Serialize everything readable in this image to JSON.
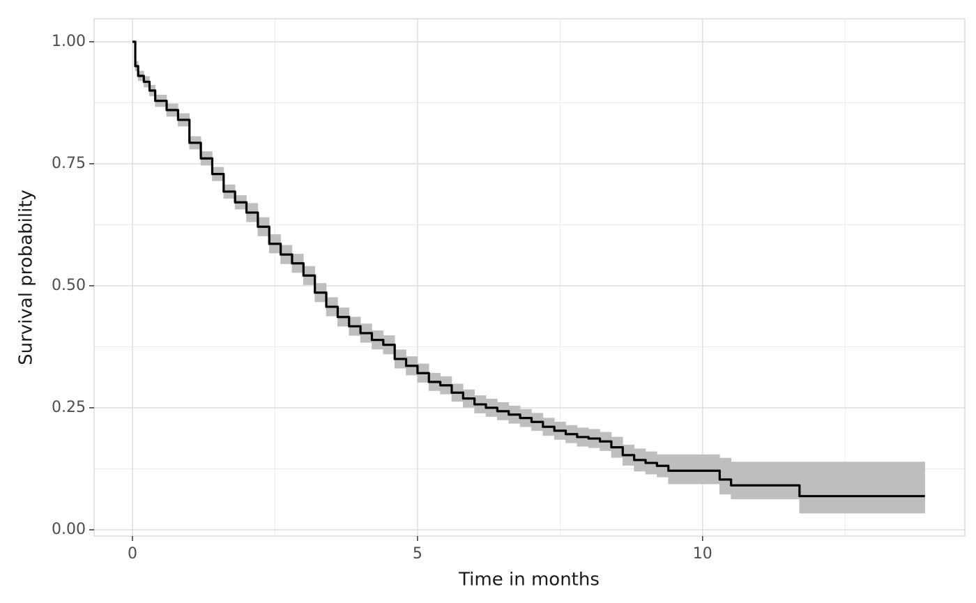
{
  "chart_data": {
    "type": "line",
    "step": true,
    "xlabel": "Time in months",
    "ylabel": "Survival probability",
    "x": [
      0,
      0.05,
      0.1,
      0.2,
      0.3,
      0.4,
      0.6,
      0.8,
      1.0,
      1.2,
      1.4,
      1.6,
      1.8,
      2.0,
      2.2,
      2.4,
      2.6,
      2.8,
      3.0,
      3.2,
      3.4,
      3.6,
      3.8,
      4.0,
      4.2,
      4.4,
      4.6,
      4.8,
      5.0,
      5.2,
      5.4,
      5.6,
      5.8,
      6.0,
      6.2,
      6.4,
      6.6,
      6.8,
      7.0,
      7.2,
      7.4,
      7.6,
      7.8,
      8.0,
      8.2,
      8.4,
      8.6,
      8.8,
      9.0,
      9.2,
      9.4,
      10.3,
      10.5,
      11.7,
      13.9
    ],
    "series": [
      {
        "color": "#000000",
        "ribbon_color": "#bebebe",
        "values": [
          1,
          0.95,
          0.93,
          0.918,
          0.9,
          0.879,
          0.86,
          0.84,
          0.793,
          0.761,
          0.729,
          0.693,
          0.671,
          0.65,
          0.621,
          0.586,
          0.564,
          0.546,
          0.521,
          0.486,
          0.457,
          0.436,
          0.417,
          0.403,
          0.389,
          0.379,
          0.35,
          0.336,
          0.321,
          0.303,
          0.296,
          0.281,
          0.269,
          0.257,
          0.25,
          0.243,
          0.236,
          0.229,
          0.221,
          0.211,
          0.203,
          0.196,
          0.19,
          0.187,
          0.181,
          0.169,
          0.153,
          0.143,
          0.137,
          0.131,
          0.121,
          0.103,
          0.091,
          0.069,
          0.069
        ],
        "lower": [
          1,
          0.94,
          0.92,
          0.907,
          0.889,
          0.867,
          0.847,
          0.827,
          0.78,
          0.747,
          0.715,
          0.679,
          0.657,
          0.631,
          0.602,
          0.567,
          0.545,
          0.527,
          0.502,
          0.467,
          0.438,
          0.417,
          0.398,
          0.384,
          0.37,
          0.36,
          0.331,
          0.317,
          0.302,
          0.285,
          0.278,
          0.263,
          0.251,
          0.239,
          0.232,
          0.225,
          0.218,
          0.211,
          0.203,
          0.193,
          0.185,
          0.178,
          0.171,
          0.168,
          0.162,
          0.148,
          0.132,
          0.12,
          0.114,
          0.108,
          0.094,
          0.073,
          0.063,
          0.034,
          0.034
        ],
        "upper": [
          1,
          0.96,
          0.94,
          0.929,
          0.911,
          0.891,
          0.873,
          0.853,
          0.806,
          0.775,
          0.743,
          0.707,
          0.685,
          0.669,
          0.64,
          0.605,
          0.583,
          0.565,
          0.54,
          0.505,
          0.476,
          0.455,
          0.436,
          0.422,
          0.408,
          0.398,
          0.369,
          0.355,
          0.34,
          0.321,
          0.314,
          0.299,
          0.287,
          0.275,
          0.268,
          0.261,
          0.254,
          0.247,
          0.239,
          0.229,
          0.221,
          0.214,
          0.209,
          0.206,
          0.2,
          0.19,
          0.174,
          0.166,
          0.16,
          0.154,
          0.154,
          0.147,
          0.139,
          0.139,
          0.139
        ]
      }
    ],
    "xlim": [
      -0.672,
      14.6
    ],
    "ylim": [
      -0.0129,
      1.047
    ],
    "xticks": [
      0,
      5,
      10
    ],
    "yticks": [
      {
        "value": 0,
        "label": "0.00"
      },
      0.25,
      {
        "value": 0.5,
        "label": "0.50"
      },
      {
        "value": 0.75,
        "label": "0.75"
      },
      {
        "value": 1,
        "label": "1.00"
      }
    ],
    "grid": true,
    "minor_grid": true
  }
}
